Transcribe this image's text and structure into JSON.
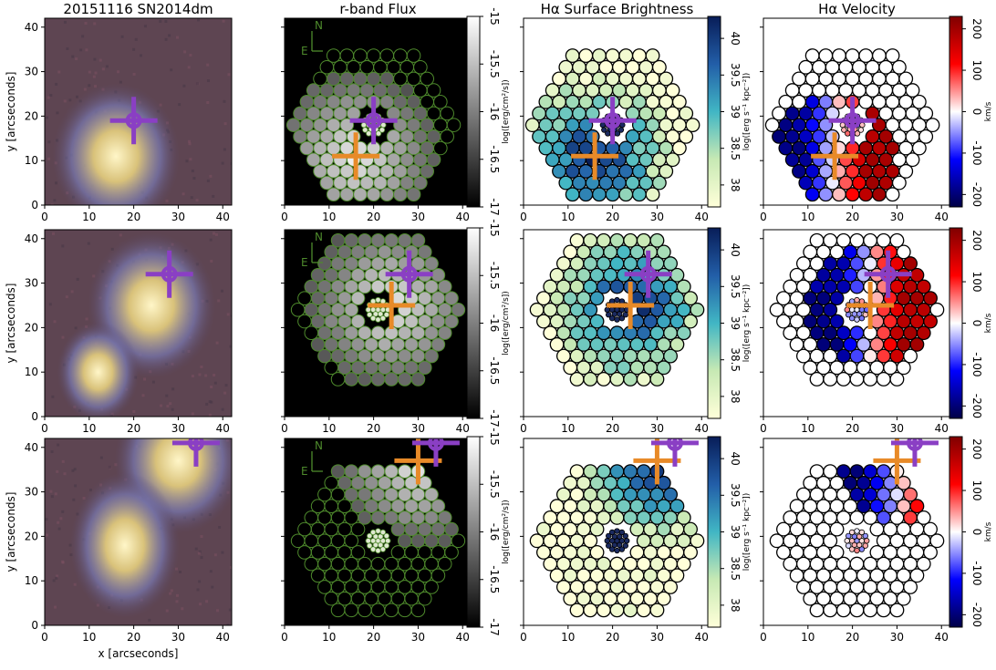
{
  "chart_data": {
    "type": "image_panels",
    "columns": [
      {
        "title": "20151116 SN2014dm",
        "kind": "image"
      },
      {
        "title": "r-band Flux",
        "kind": "flux",
        "colorbar": {
          "ticks": [
            "-15",
            "-15.5",
            "-16",
            "-16.5",
            "-17"
          ],
          "label": "log([erg/cm²/s])",
          "cmap": "gray",
          "range": [
            -17,
            -15
          ]
        }
      },
      {
        "title": "Hα Surface Brightness",
        "kind": "sb",
        "colorbar": {
          "ticks": [
            "40",
            "39.5",
            "39",
            "38.5",
            "38"
          ],
          "label": "log([erg s⁻¹ kpc⁻²])",
          "cmap": "YlGnBu",
          "range": [
            37.7,
            40.3
          ]
        }
      },
      {
        "title": "Hα Velocity",
        "kind": "vel",
        "colorbar": {
          "ticks": [
            "200",
            "100",
            "0",
            "-100",
            "-200"
          ],
          "label": "km/s",
          "cmap": "seismic",
          "range": [
            -230,
            230
          ]
        }
      }
    ],
    "rows": [
      {
        "sn_marker": [
          20,
          19
        ],
        "center_marker": [
          16,
          11
        ],
        "ifu_center": [
          20,
          18
        ]
      },
      {
        "sn_marker": [
          28,
          32
        ],
        "center_marker": [
          24,
          25
        ],
        "ifu_center": [
          21,
          24
        ]
      },
      {
        "sn_marker": [
          34,
          41
        ],
        "center_marker": [
          30,
          37
        ],
        "ifu_center": [
          21,
          19
        ]
      }
    ],
    "xlim": [
      0,
      42
    ],
    "ylim": [
      0,
      42
    ],
    "x_ticks": [
      "0",
      "10",
      "20",
      "30",
      "40"
    ],
    "y_ticks": [
      "0",
      "10",
      "20",
      "30",
      "40"
    ],
    "xlabel": "x [arcseconds]",
    "ylabel": "y [arcseconds]",
    "compass": {
      "north": "N",
      "east": "E"
    },
    "colors": {
      "sn_marker": "#8a3fc4",
      "center_marker": "#e88a28",
      "fiber_outline": "#4e8a2c"
    }
  }
}
